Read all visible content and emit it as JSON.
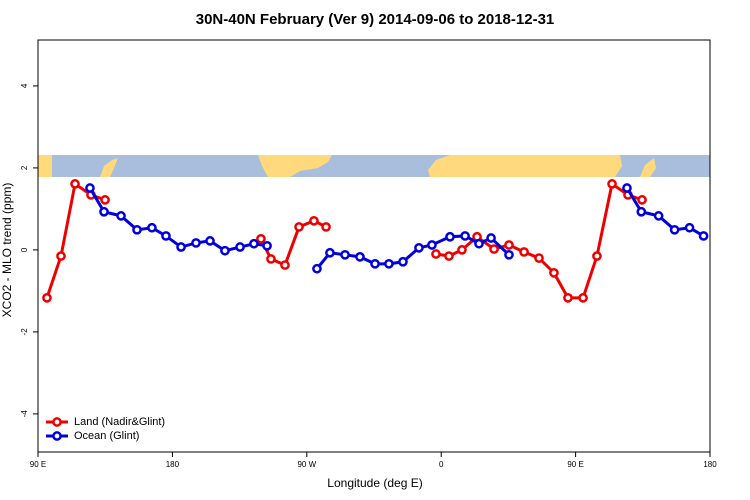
{
  "chart_data": {
    "type": "line",
    "title": "30N-40N February (Ver 9)   2014-09-06 to 2018-12-31",
    "x_label": "Longitude (deg E)",
    "y_label": "XCO2 - MLO trend (ppm)",
    "xlim": [
      90,
      540
    ],
    "ylim": [
      -4.93,
      5.12
    ],
    "xticks": [
      {
        "value": 90,
        "label": "90 E"
      },
      180,
      {
        "value": 270,
        "label": "90 W"
      },
      {
        "value": 360,
        "label": "0"
      },
      {
        "value": 450,
        "label": "90 E"
      },
      {
        "value": 540,
        "label": "180"
      }
    ],
    "yticks": [
      -4,
      -2,
      0,
      2,
      4
    ],
    "legend": "bottom-left",
    "series": [
      {
        "name": "Land (Nadir&Glint)",
        "color": "#ee0000",
        "x": [
          96,
          105.4,
          114.8,
          125.5,
          134.9,
          null,
          239.3,
          246,
          255.4,
          264.8,
          274.8,
          282.9,
          null,
          356.5,
          365.2,
          373.9,
          384,
          395.4,
          405.4,
          415.5,
          425.5,
          435.5,
          444.9,
          455,
          464.3,
          474.4,
          485.1,
          494.5
        ],
        "values": [
          -1.17,
          -0.15,
          1.61,
          1.34,
          1.22,
          null,
          0.27,
          -0.22,
          -0.37,
          0.56,
          0.71,
          0.56,
          null,
          -0.1,
          -0.15,
          0,
          0.32,
          0.02,
          0.12,
          -0.05,
          -0.2,
          -0.56,
          -1.17,
          -1.17,
          -0.15,
          1.61,
          1.34,
          1.22
        ]
      },
      {
        "name": "Ocean (Glint)",
        "color": "#0000dd",
        "x": [
          124.8,
          134.2,
          145.6,
          156.3,
          166.3,
          175.7,
          185.8,
          195.8,
          205.2,
          215.2,
          225.3,
          234.6,
          243.4,
          null,
          276.8,
          285.5,
          295.6,
          305.6,
          315.7,
          325,
          334.4,
          345.1,
          353.8,
          365.9,
          376,
          385.3,
          393.4,
          405.4,
          null,
          484.4,
          494,
          505.6,
          516.3,
          526.3,
          535.7
        ],
        "values": [
          1.51,
          0.93,
          0.83,
          0.49,
          0.54,
          0.34,
          0.07,
          0.17,
          0.22,
          -0.02,
          0.07,
          0.15,
          0.1,
          null,
          -0.46,
          -0.07,
          -0.12,
          -0.17,
          -0.34,
          -0.34,
          -0.29,
          0.05,
          0.12,
          0.32,
          0.34,
          0.15,
          0.29,
          -0.12,
          null,
          1.51,
          0.93,
          0.83,
          0.49,
          0.54,
          0.34
        ]
      }
    ]
  }
}
